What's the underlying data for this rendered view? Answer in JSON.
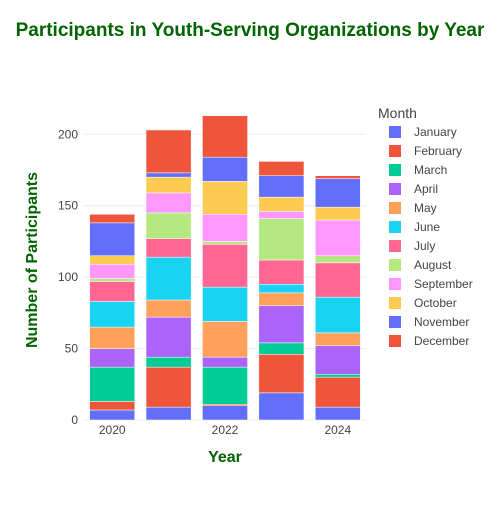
{
  "chart_data": {
    "type": "bar",
    "stacked": true,
    "title": "Participants in Youth-Serving Organizations by Year",
    "xlabel": "Year",
    "ylabel": "Number of Participants",
    "legend_title": "Month",
    "legend_position": "right",
    "x": [
      2020,
      2021,
      2022,
      2023,
      2024
    ],
    "x_tick_labels": [
      "2020",
      "2022",
      "2024"
    ],
    "ylim": [
      0,
      224
    ],
    "y_ticks": [
      0,
      50,
      100,
      150,
      200
    ],
    "grid": true,
    "series": [
      {
        "name": "January",
        "color": "#636efa",
        "values": [
          7,
          9,
          10,
          19,
          9
        ]
      },
      {
        "name": "February",
        "color": "#EF553B",
        "values": [
          6,
          28,
          1,
          27,
          21
        ]
      },
      {
        "name": "March",
        "color": "#00cc96",
        "values": [
          24,
          7,
          26,
          8,
          2
        ]
      },
      {
        "name": "April",
        "color": "#ab63fa",
        "values": [
          13,
          28,
          7,
          26,
          20
        ]
      },
      {
        "name": "May",
        "color": "#FFA15A",
        "values": [
          15,
          12,
          25,
          9,
          9
        ]
      },
      {
        "name": "June",
        "color": "#19d3f3",
        "values": [
          18,
          30,
          24,
          6,
          25
        ]
      },
      {
        "name": "July",
        "color": "#FF6692",
        "values": [
          14,
          13,
          30,
          17,
          24
        ]
      },
      {
        "name": "August",
        "color": "#B6E880",
        "values": [
          2,
          18,
          2,
          29,
          5
        ]
      },
      {
        "name": "September",
        "color": "#FF97FF",
        "values": [
          10,
          14,
          19,
          5,
          25
        ]
      },
      {
        "name": "October",
        "color": "#FECB52",
        "values": [
          6,
          11,
          23,
          10,
          9
        ]
      },
      {
        "name": "November",
        "color": "#636efa",
        "values": [
          23,
          3,
          17,
          15,
          20
        ]
      },
      {
        "name": "December",
        "color": "#EF553B",
        "values": [
          6,
          30,
          29,
          10,
          2
        ]
      }
    ]
  }
}
